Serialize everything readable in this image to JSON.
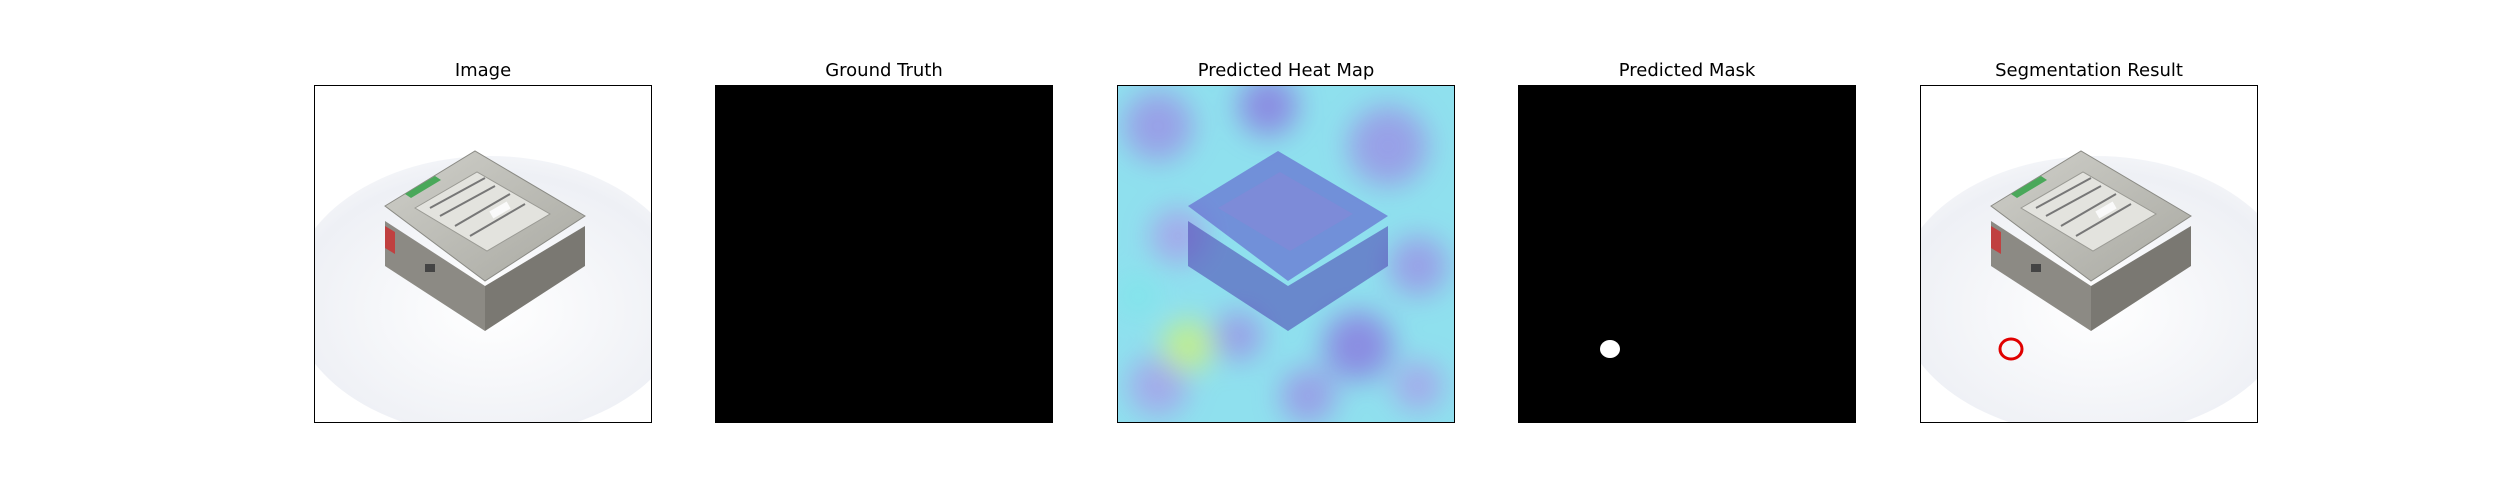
{
  "figure": {
    "panels": [
      {
        "title": "Image"
      },
      {
        "title": "Ground Truth"
      },
      {
        "title": "Predicted Heat Map"
      },
      {
        "title": "Predicted Mask"
      },
      {
        "title": "Segmentation Result"
      }
    ]
  },
  "colors": {
    "background": "#ffffff",
    "frame": "#000000",
    "mask_background": "#000000",
    "mask_foreground": "#ffffff",
    "segmentation_contour": "#e00000",
    "heatmap_low": "#7fe6ea",
    "heatmap_mid": "#9a96e6",
    "heatmap_high": "#5a3fd0",
    "heatmap_hot": "#c8f080"
  }
}
